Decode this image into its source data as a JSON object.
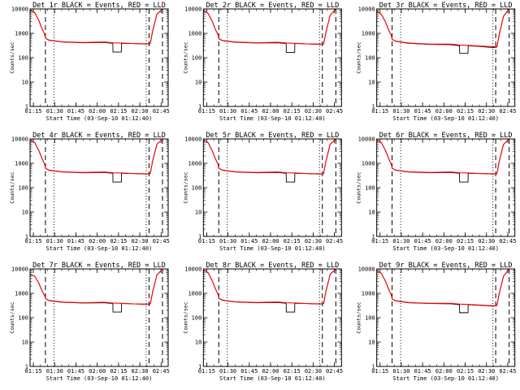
{
  "chart_data": {
    "type": "line",
    "layout": "3x3 grid",
    "xlabel": "Start Time (03-Sep-10 01:12:40)",
    "ylabel": "Counts/sec",
    "x_unit": "time of day (HH:MM)",
    "x_tick_labels": [
      "01:15",
      "01:30",
      "01:45",
      "02:00",
      "02:15",
      "02:30",
      "02:45"
    ],
    "x_tick_minutes": [
      75,
      90,
      105,
      120,
      135,
      150,
      165
    ],
    "xlim": [
      72.67,
      170
    ],
    "y_scale": "log",
    "ylim": [
      1,
      10000
    ],
    "y_tick_labels": [
      "1",
      "10",
      "100",
      "1000",
      "10000"
    ],
    "y_tick_values": [
      1,
      10,
      100,
      1000,
      10000
    ],
    "legend_colors": {
      "Events": "#000000",
      "LLD": "#ff0000"
    },
    "marker_lines": {
      "dashed_minutes": [
        83.5,
        156.5,
        166
      ],
      "dotted_minutes": [
        89.5,
        154.5
      ]
    },
    "panels": [
      {
        "title": "Det 1r BLACK = Events, RED = LLD",
        "series": [
          {
            "name": "Events",
            "color": "#000000",
            "x": [
              72.7,
              76,
              79,
              81,
              83,
              83.6,
              86,
              95,
              110,
              125,
              131,
              131.1,
              137,
              137.1,
              145,
              155,
              157,
              157.4,
              159,
              162,
              166,
              170
            ],
            "y": [
              9000,
              7000,
              3200,
              1600,
              900,
              620,
              520,
              440,
              410,
              420,
              390,
              170,
              170,
              390,
              380,
              360,
              380,
              380,
              1200,
              6000,
              10000,
              10000
            ]
          },
          {
            "name": "LLD",
            "color": "#ff0000",
            "x": [
              72.7,
              76,
              79,
              81,
              83,
              83.6,
              86,
              95,
              110,
              125,
              131,
              137,
              145,
              155,
              157,
              157.4,
              159,
              162,
              166,
              170
            ],
            "y": [
              9000,
              7000,
              3200,
              1600,
              900,
              620,
              530,
              450,
              420,
              440,
              410,
              400,
              380,
              370,
              370,
              380,
              1200,
              6000,
              10000,
              10000
            ]
          }
        ]
      },
      {
        "title": "Det 2r BLACK = Events, RED = LLD",
        "series": [
          {
            "name": "Events",
            "color": "#000000",
            "x": [
              72.7,
              76,
              79,
              81,
              83,
              83.6,
              86,
              95,
              110,
              125,
              131,
              131.1,
              137,
              137.1,
              145,
              155,
              157,
              157.4,
              159,
              162,
              166,
              170
            ],
            "y": [
              8500,
              6500,
              3000,
              1500,
              850,
              600,
              500,
              430,
              400,
              410,
              380,
              165,
              165,
              380,
              370,
              350,
              360,
              370,
              1100,
              5500,
              10000,
              10000
            ]
          },
          {
            "name": "LLD",
            "color": "#ff0000",
            "x": [
              72.7,
              76,
              79,
              81,
              83,
              83.6,
              86,
              95,
              110,
              125,
              131,
              137,
              145,
              155,
              157,
              157.4,
              159,
              162,
              166,
              170
            ],
            "y": [
              8500,
              6500,
              3000,
              1500,
              850,
              600,
              510,
              440,
              410,
              430,
              400,
              390,
              370,
              360,
              360,
              370,
              1100,
              5500,
              10000,
              10000
            ]
          }
        ]
      },
      {
        "title": "Det 3r BLACK = Events, RED = LLD",
        "series": [
          {
            "name": "Events",
            "color": "#000000",
            "x": [
              72.7,
              76,
              79,
              81,
              83,
              83.6,
              86,
              95,
              110,
              125,
              131,
              131.1,
              137,
              137.1,
              145,
              155,
              157,
              157.4,
              159,
              162,
              166,
              170
            ],
            "y": [
              8000,
              6000,
              2800,
              1400,
              800,
              560,
              470,
              390,
              350,
              340,
              310,
              150,
              150,
              310,
              290,
              260,
              270,
              280,
              900,
              5000,
              10000,
              10000
            ]
          },
          {
            "name": "LLD",
            "color": "#ff0000",
            "x": [
              72.7,
              76,
              79,
              81,
              83,
              83.6,
              86,
              95,
              110,
              125,
              131,
              137,
              145,
              155,
              157,
              157.4,
              159,
              162,
              166,
              170
            ],
            "y": [
              8000,
              6000,
              2800,
              1400,
              800,
              560,
              480,
              400,
              360,
              360,
              330,
              320,
              300,
              280,
              280,
              280,
              900,
              5000,
              10000,
              10000
            ]
          }
        ]
      },
      {
        "title": "Det 4r BLACK = Events, RED = LLD",
        "series": [
          {
            "name": "Events",
            "color": "#000000",
            "x": [
              72.7,
              76,
              79,
              81,
              83,
              83.6,
              86,
              95,
              110,
              125,
              131,
              131.1,
              137,
              137.1,
              145,
              155,
              157,
              157.4,
              159,
              162,
              166,
              170
            ],
            "y": [
              9000,
              7000,
              3200,
              1600,
              900,
              620,
              520,
              440,
              410,
              420,
              390,
              170,
              170,
              390,
              380,
              360,
              380,
              380,
              1200,
              6000,
              10000,
              10000
            ]
          },
          {
            "name": "LLD",
            "color": "#ff0000",
            "x": [
              72.7,
              76,
              79,
              81,
              83,
              83.6,
              86,
              95,
              110,
              125,
              131,
              137,
              145,
              155,
              157,
              157.4,
              159,
              162,
              166,
              170
            ],
            "y": [
              9000,
              7000,
              3200,
              1600,
              900,
              620,
              530,
              450,
              420,
              440,
              410,
              400,
              380,
              370,
              370,
              380,
              1200,
              6000,
              10000,
              10000
            ]
          }
        ]
      },
      {
        "title": "Det 5r BLACK = Events, RED = LLD",
        "series": [
          {
            "name": "Events",
            "color": "#000000",
            "x": [
              72.7,
              76,
              79,
              81,
              83,
              83.6,
              86,
              95,
              110,
              125,
              131,
              131.1,
              137,
              137.1,
              145,
              155,
              157,
              157.4,
              159,
              162,
              166,
              170
            ],
            "y": [
              9000,
              7000,
              3200,
              1600,
              900,
              620,
              520,
              440,
              410,
              420,
              390,
              170,
              170,
              390,
              380,
              360,
              380,
              380,
              1200,
              6000,
              10000,
              10000
            ]
          },
          {
            "name": "LLD",
            "color": "#ff0000",
            "x": [
              72.7,
              76,
              79,
              81,
              83,
              83.6,
              86,
              95,
              110,
              125,
              131,
              137,
              145,
              155,
              157,
              157.4,
              159,
              162,
              166,
              170
            ],
            "y": [
              9000,
              7000,
              3200,
              1600,
              900,
              620,
              530,
              450,
              420,
              440,
              410,
              400,
              380,
              370,
              370,
              380,
              1200,
              6000,
              10000,
              10000
            ]
          }
        ]
      },
      {
        "title": "Det 6r BLACK = Events, RED = LLD",
        "series": [
          {
            "name": "Events",
            "color": "#000000",
            "x": [
              72.7,
              76,
              79,
              81,
              83,
              83.6,
              86,
              95,
              110,
              125,
              131,
              131.1,
              137,
              137.1,
              145,
              155,
              157,
              157.4,
              159,
              162,
              166,
              170
            ],
            "y": [
              9000,
              7000,
              3200,
              1600,
              900,
              620,
              520,
              440,
              410,
              420,
              390,
              170,
              170,
              390,
              380,
              360,
              380,
              380,
              1200,
              6000,
              10000,
              10000
            ]
          },
          {
            "name": "LLD",
            "color": "#ff0000",
            "x": [
              72.7,
              76,
              79,
              81,
              83,
              83.6,
              86,
              95,
              110,
              125,
              131,
              137,
              145,
              155,
              157,
              157.4,
              159,
              162,
              166,
              170
            ],
            "y": [
              9000,
              7000,
              3200,
              1600,
              900,
              620,
              530,
              450,
              420,
              440,
              410,
              400,
              380,
              370,
              370,
              380,
              1200,
              6000,
              10000,
              10000
            ]
          }
        ]
      },
      {
        "title": "Det 7r BLACK = Events, RED = LLD",
        "series": [
          {
            "name": "Events",
            "color": "#000000",
            "x": [
              72.7,
              76,
              79,
              81,
              83,
              83.6,
              86,
              95,
              110,
              125,
              131,
              131.1,
              137,
              137.1,
              145,
              155,
              157,
              157.4,
              159,
              162,
              166,
              170
            ],
            "y": [
              6000,
              5000,
              2500,
              1300,
              800,
              600,
              500,
              430,
              400,
              410,
              380,
              170,
              170,
              380,
              370,
              350,
              370,
              370,
              1100,
              5500,
              10000,
              10000
            ]
          },
          {
            "name": "LLD",
            "color": "#ff0000",
            "x": [
              72.7,
              76,
              79,
              81,
              83,
              83.6,
              86,
              95,
              110,
              125,
              131,
              137,
              145,
              155,
              157,
              157.4,
              159,
              162,
              166,
              170
            ],
            "y": [
              6000,
              5000,
              2500,
              1300,
              800,
              600,
              510,
              440,
              410,
              430,
              400,
              390,
              370,
              360,
              360,
              370,
              1100,
              5500,
              10000,
              10000
            ]
          }
        ]
      },
      {
        "title": "Det 8r BLACK = Events, RED = LLD",
        "series": [
          {
            "name": "Events",
            "color": "#000000",
            "x": [
              72.7,
              76,
              79,
              81,
              83,
              83.6,
              86,
              95,
              110,
              125,
              131,
              131.1,
              137,
              137.1,
              145,
              155,
              157,
              157.4,
              159,
              162,
              166,
              170
            ],
            "y": [
              9000,
              7000,
              3200,
              1600,
              900,
              620,
              520,
              440,
              410,
              420,
              390,
              170,
              170,
              390,
              380,
              360,
              380,
              380,
              1200,
              6000,
              10000,
              10000
            ]
          },
          {
            "name": "LLD",
            "color": "#ff0000",
            "x": [
              72.7,
              76,
              79,
              81,
              83,
              83.6,
              86,
              95,
              110,
              125,
              131,
              137,
              145,
              155,
              157,
              157.4,
              159,
              162,
              166,
              170
            ],
            "y": [
              9000,
              7000,
              3200,
              1600,
              900,
              620,
              530,
              450,
              420,
              440,
              410,
              400,
              380,
              370,
              370,
              380,
              1200,
              6000,
              10000,
              10000
            ]
          }
        ]
      },
      {
        "title": "Det 9r BLACK = Events, RED = LLD",
        "series": [
          {
            "name": "Events",
            "color": "#000000",
            "x": [
              72.7,
              76,
              79,
              81,
              83,
              83.6,
              86,
              95,
              110,
              125,
              131,
              131.1,
              137,
              137.1,
              145,
              155,
              157,
              157.4,
              159,
              162,
              166,
              170
            ],
            "y": [
              8500,
              6500,
              3000,
              1500,
              850,
              580,
              490,
              410,
              380,
              370,
              340,
              160,
              160,
              340,
              320,
              300,
              310,
              320,
              1000,
              5000,
              10000,
              10000
            ]
          },
          {
            "name": "LLD",
            "color": "#ff0000",
            "x": [
              72.7,
              76,
              79,
              81,
              83,
              83.6,
              86,
              95,
              110,
              125,
              131,
              137,
              145,
              155,
              157,
              157.4,
              159,
              162,
              166,
              170
            ],
            "y": [
              8500,
              6500,
              3000,
              1500,
              850,
              580,
              500,
              420,
              390,
              390,
              360,
              350,
              330,
              310,
              310,
              320,
              1000,
              5000,
              10000,
              10000
            ]
          }
        ]
      }
    ]
  }
}
